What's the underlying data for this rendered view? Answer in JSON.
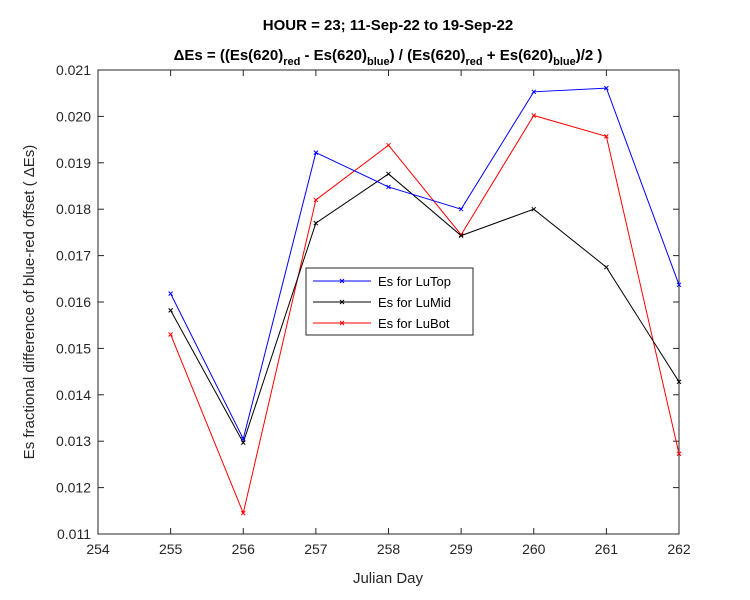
{
  "chart_data": {
    "type": "line",
    "title_line1": "HOUR = 23; 11-Sep-22 to 19-Sep-22",
    "title_line2": {
      "prefix": "ΔEs = ((Es(620)",
      "sub_red_1": "red",
      "mid_1": " - Es(620)",
      "sub_blue_1": "blue",
      "mid_2": ") / (Es(620)",
      "sub_red_2": "red",
      "mid_3": " + Es(620)",
      "sub_blue_2": "blue",
      "suffix": ")/2  )"
    },
    "xlabel": "Julian Day",
    "ylabel": "Es fractional difference of blue-red offset (  ΔEs)",
    "xlim": [
      254,
      262
    ],
    "ylim": [
      0.011,
      0.021
    ],
    "xticks": [
      254,
      255,
      256,
      257,
      258,
      259,
      260,
      261,
      262
    ],
    "yticks": [
      0.011,
      0.012,
      0.013,
      0.014,
      0.015,
      0.016,
      0.017,
      0.018,
      0.019,
      0.02,
      0.021
    ],
    "ytick_labels": [
      "0.011",
      "0.012",
      "0.013",
      "0.014",
      "0.015",
      "0.016",
      "0.017",
      "0.018",
      "0.019",
      "0.020",
      "0.021"
    ],
    "grid": false,
    "legend_position": "center",
    "x": [
      255,
      256,
      257,
      258,
      259,
      260,
      261,
      262
    ],
    "series": [
      {
        "name": "Es for LuTop",
        "color": "#0000ff",
        "values": [
          0.01618,
          0.01305,
          0.01922,
          0.01848,
          0.018,
          0.02053,
          0.02061,
          0.01637
        ]
      },
      {
        "name": "Es for LuMid",
        "color": "#000000",
        "values": [
          0.01582,
          0.01297,
          0.0177,
          0.01876,
          0.01743,
          0.018,
          0.01675,
          0.01428
        ]
      },
      {
        "name": "Es for LuBot",
        "color": "#ff0000",
        "values": [
          0.0153,
          0.01145,
          0.0182,
          0.01938,
          0.01745,
          0.02002,
          0.01957,
          0.01273
        ]
      }
    ]
  }
}
